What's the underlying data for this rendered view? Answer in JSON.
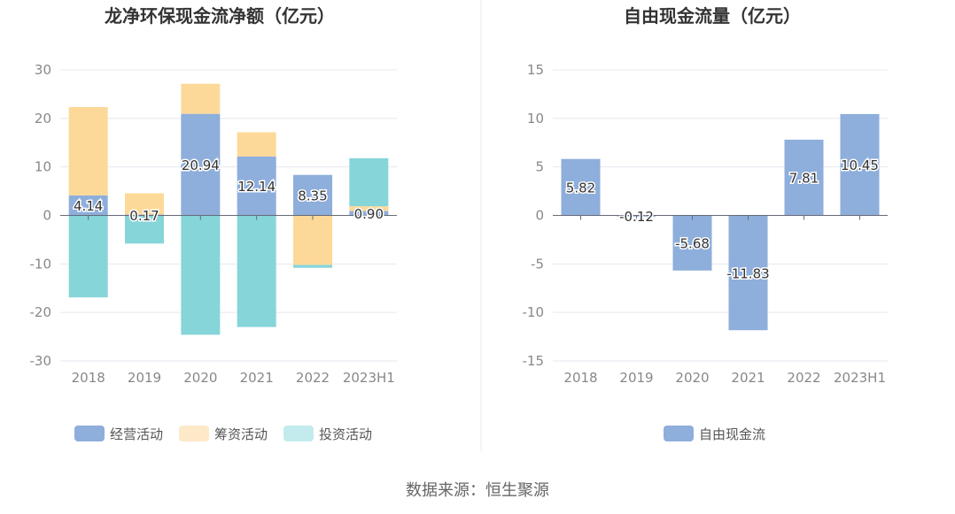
{
  "chart_data": [
    {
      "type": "bar",
      "stacked": true,
      "title": "龙净环保现金流净额（亿元）",
      "categories": [
        "2018",
        "2019",
        "2020",
        "2021",
        "2022",
        "2023H1"
      ],
      "yticks": [
        "30",
        "20",
        "10",
        "0",
        "-10",
        "-20",
        "-30"
      ],
      "ylim": [
        -30,
        30
      ],
      "series": [
        {
          "name": "经营活动",
          "color": "#8eaedb",
          "values": [
            4.14,
            0.17,
            20.94,
            12.14,
            8.35,
            0.9
          ],
          "labels": [
            "4.14",
            "0.17",
            "20.94",
            "12.14",
            "8.35",
            "0.90"
          ]
        },
        {
          "name": "筹资活动",
          "color": "#fdd999",
          "legend_color": "#fde8c8",
          "values": [
            18.2,
            4.4,
            6.2,
            5.0,
            -10.2,
            1.0
          ]
        },
        {
          "name": "投资活动",
          "color": "#86d5d9",
          "legend_color": "#c3ebed",
          "values": [
            -16.9,
            -5.8,
            -24.6,
            -23.0,
            -0.6,
            9.9
          ]
        }
      ]
    },
    {
      "type": "bar",
      "title": "自由现金流量（亿元）",
      "categories": [
        "2018",
        "2019",
        "2020",
        "2021",
        "2022",
        "2023H1"
      ],
      "yticks": [
        "15",
        "10",
        "5",
        "0",
        "-5",
        "-10",
        "-15"
      ],
      "ylim": [
        -15,
        15
      ],
      "series": [
        {
          "name": "自由现金流",
          "color": "#8eaedb",
          "values": [
            5.82,
            -0.12,
            -5.68,
            -11.83,
            7.81,
            10.45
          ],
          "labels": [
            "5.82",
            "-0.12",
            "-5.68",
            "-11.83",
            "7.81",
            "10.45"
          ]
        }
      ]
    }
  ],
  "source": "数据来源：恒生聚源"
}
